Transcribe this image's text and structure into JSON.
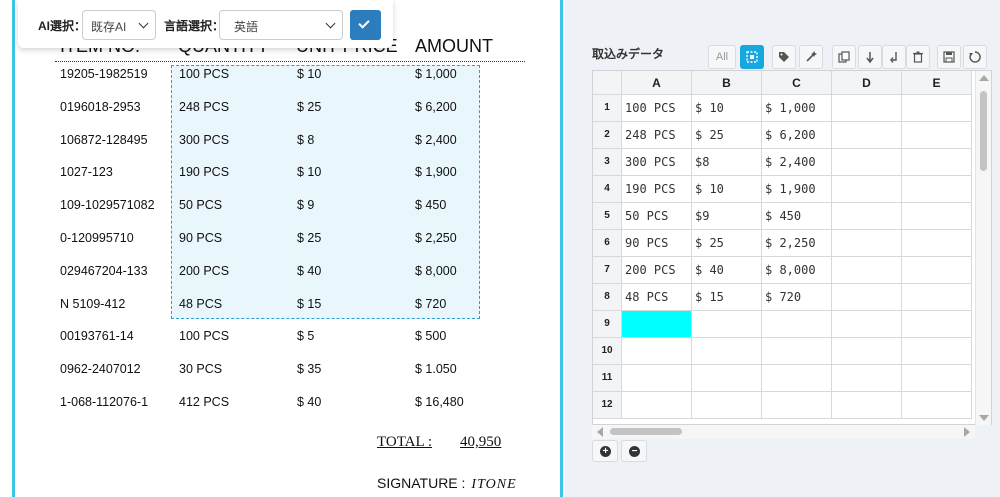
{
  "toolbar": {
    "ai_label": "AI選択：",
    "ai_value": "既存AI",
    "lang_label": "言語選択：",
    "lang_value": "英語"
  },
  "document": {
    "headers": [
      "ITEM NO.",
      "QUANTITY",
      "UNIT PRICE",
      "AMOUNT"
    ],
    "rows": [
      {
        "item": "19205-1982519",
        "qty": "100 PCS",
        "price": "$ 10",
        "amount": "$ 1,000"
      },
      {
        "item": "0196018-2953",
        "qty": "248 PCS",
        "price": "$ 25",
        "amount": "$ 6,200"
      },
      {
        "item": "106872-128495",
        "qty": "300 PCS",
        "price": "$ 8",
        "amount": "$ 2,400"
      },
      {
        "item": "1027-123",
        "qty": "190 PCS",
        "price": "$ 10",
        "amount": "$ 1,900"
      },
      {
        "item": "109-1029571082",
        "qty": "50 PCS",
        "price": "$ 9",
        "amount": "$ 450"
      },
      {
        "item": "0-120995710",
        "qty": "90 PCS",
        "price": "$ 25",
        "amount": "$ 2,250"
      },
      {
        "item": "029467204-133",
        "qty": "200 PCS",
        "price": "$ 40",
        "amount": "$ 8,000"
      },
      {
        "item": "N 5109-412",
        "qty": "48 PCS",
        "price": "$ 15",
        "amount": "$ 720"
      },
      {
        "item": "00193761-14",
        "qty": "100 PCS",
        "price": "$ 5",
        "amount": "$ 500"
      },
      {
        "item": "0962-2407012",
        "qty": "30 PCS",
        "price": "$ 35",
        "amount": "$ 1.050"
      },
      {
        "item": "1-068-112076-1",
        "qty": "412 PCS",
        "price": "$ 40",
        "amount": "$ 16,480"
      }
    ],
    "total_label": "TOTAL :",
    "total_value": "40,950",
    "signature_label": "SIGNATURE :",
    "signature_value": "ITONE"
  },
  "sheet": {
    "title": "取込みデータ",
    "toolbar_all": "All",
    "columns": [
      "A",
      "B",
      "C",
      "D",
      "E"
    ],
    "row_numbers": [
      "1",
      "2",
      "3",
      "4",
      "5",
      "6",
      "7",
      "8",
      "9",
      "10",
      "11",
      "12"
    ],
    "rows": [
      [
        "100 PCS",
        "$ 10",
        "$ 1,000",
        "",
        ""
      ],
      [
        "248 PCS",
        "$ 25",
        "$ 6,200",
        "",
        ""
      ],
      [
        "300 PCS",
        "$8",
        "$ 2,400",
        "",
        ""
      ],
      [
        "190 PCS",
        "$ 10",
        "$ 1,900",
        "",
        ""
      ],
      [
        "50 PCS",
        "$9",
        "$ 450",
        "",
        ""
      ],
      [
        "90 PCS",
        "$ 25",
        "$ 2,250",
        "",
        ""
      ],
      [
        "200 PCS",
        "$ 40",
        "$ 8,000",
        "",
        ""
      ],
      [
        "48 PCS",
        "$ 15",
        "$ 720",
        "",
        ""
      ],
      [
        "",
        "",
        "",
        "",
        ""
      ],
      [
        "",
        "",
        "",
        "",
        ""
      ],
      [
        "",
        "",
        "",
        "",
        ""
      ],
      [
        "",
        "",
        "",
        "",
        ""
      ]
    ],
    "selected_color": "#00ffff",
    "accent_color": "#17a8e0"
  }
}
